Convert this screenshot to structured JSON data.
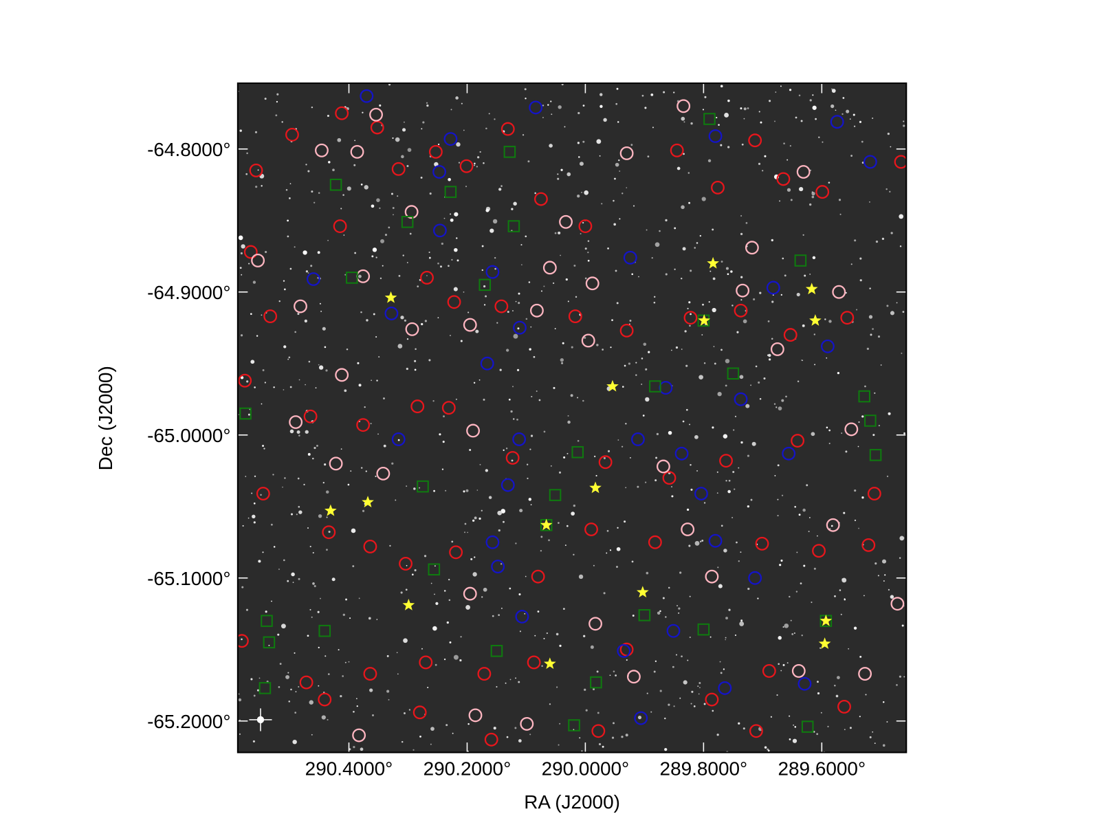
{
  "chart_data": {
    "type": "scatter",
    "xlabel": "RA (J2000)",
    "ylabel": "Dec (J2000)",
    "xlim": [
      290.588,
      289.457
    ],
    "ylim": [
      -65.222,
      -64.754
    ],
    "xticks": [
      {
        "value": 290.4,
        "label": "290.4000°"
      },
      {
        "value": 290.2,
        "label": "290.2000°"
      },
      {
        "value": 290.0,
        "label": "290.0000°"
      },
      {
        "value": 289.8,
        "label": "289.8000°"
      },
      {
        "value": 289.6,
        "label": "289.6000°"
      }
    ],
    "yticks": [
      {
        "value": -64.8,
        "label": "-64.8000°"
      },
      {
        "value": -64.9,
        "label": "-64.9000°"
      },
      {
        "value": -65.0,
        "label": "-65.0000°"
      },
      {
        "value": -65.1,
        "label": "-65.1000°"
      },
      {
        "value": -65.2,
        "label": "-65.2000°"
      }
    ],
    "series": [
      {
        "color": "#e8161c",
        "marker": "circle",
        "x": [
          290.557,
          290.496,
          290.412,
          290.352,
          290.316,
          290.253,
          290.201,
          290.131,
          290.075,
          290.0,
          289.845,
          289.776,
          289.713,
          289.665,
          289.599,
          289.466,
          290.566,
          290.533,
          290.415,
          290.268,
          290.222,
          290.142,
          290.017,
          289.93,
          289.822,
          289.737,
          289.653,
          289.557,
          290.576,
          290.465,
          290.376,
          290.284,
          290.231,
          290.123,
          289.966,
          289.858,
          289.762,
          289.641,
          289.511,
          290.545,
          290.434,
          290.364,
          290.304,
          290.219,
          290.08,
          289.99,
          289.882,
          289.701,
          289.605,
          289.521,
          290.581,
          290.472,
          290.364,
          290.27,
          290.171,
          290.087,
          289.93,
          289.786,
          289.689,
          289.562,
          290.441,
          290.28,
          290.159,
          289.978,
          289.711
        ],
        "y": [
          -64.815,
          -64.79,
          -64.775,
          -64.785,
          -64.814,
          -64.802,
          -64.812,
          -64.786,
          -64.835,
          -64.854,
          -64.801,
          -64.827,
          -64.794,
          -64.821,
          -64.83,
          -64.809,
          -64.872,
          -64.917,
          -64.854,
          -64.89,
          -64.907,
          -64.91,
          -64.917,
          -64.927,
          -64.918,
          -64.913,
          -64.93,
          -64.918,
          -64.962,
          -64.987,
          -64.993,
          -64.98,
          -64.981,
          -65.016,
          -65.019,
          -65.03,
          -65.018,
          -65.004,
          -65.041,
          -65.041,
          -65.068,
          -65.078,
          -65.09,
          -65.082,
          -65.099,
          -65.066,
          -65.075,
          -65.076,
          -65.081,
          -65.077,
          -65.144,
          -65.173,
          -65.167,
          -65.159,
          -65.167,
          -65.159,
          -65.15,
          -65.185,
          -65.165,
          -65.19,
          -65.185,
          -65.194,
          -65.213,
          -65.207,
          -65.207
        ]
      },
      {
        "color": "#ffb6c1",
        "marker": "circle",
        "x": [
          290.446,
          290.386,
          290.354,
          290.294,
          290.554,
          290.482,
          290.376,
          290.412,
          290.293,
          290.195,
          290.082,
          290.06,
          290.033,
          289.988,
          289.995,
          289.93,
          289.834,
          289.718,
          289.734,
          289.675,
          289.631,
          289.571,
          289.55,
          289.581,
          289.472,
          289.527,
          290.49,
          290.422,
          290.342,
          290.19,
          289.868,
          289.827,
          289.786,
          290.195,
          289.983,
          289.918,
          290.186,
          290.099,
          290.383,
          289.639
        ],
        "y": [
          -64.801,
          -64.802,
          -64.776,
          -64.844,
          -64.878,
          -64.91,
          -64.889,
          -64.958,
          -64.926,
          -64.923,
          -64.913,
          -64.883,
          -64.851,
          -64.894,
          -64.934,
          -64.803,
          -64.77,
          -64.869,
          -64.899,
          -64.94,
          -64.816,
          -64.9,
          -64.996,
          -65.063,
          -65.118,
          -65.167,
          -64.991,
          -65.02,
          -65.027,
          -64.997,
          -65.022,
          -65.066,
          -65.099,
          -65.111,
          -65.132,
          -65.169,
          -65.196,
          -65.202,
          -65.21,
          -65.165
        ]
      },
      {
        "color": "#1414c8",
        "marker": "circle",
        "x": [
          290.37,
          290.228,
          290.084,
          289.78,
          289.574,
          289.518,
          290.247,
          290.246,
          289.924,
          290.46,
          290.157,
          289.682,
          290.328,
          290.111,
          290.166,
          289.59,
          289.864,
          289.737,
          290.316,
          290.112,
          289.911,
          289.837,
          289.656,
          290.131,
          289.804,
          290.157,
          289.78,
          290.148,
          289.713,
          290.107,
          289.851,
          289.935,
          289.764,
          289.629,
          289.906
        ],
        "y": [
          -64.763,
          -64.793,
          -64.771,
          -64.791,
          -64.781,
          -64.809,
          -64.816,
          -64.857,
          -64.876,
          -64.891,
          -64.886,
          -64.897,
          -64.915,
          -64.925,
          -64.95,
          -64.938,
          -64.967,
          -64.975,
          -65.003,
          -65.003,
          -65.003,
          -65.013,
          -65.013,
          -65.035,
          -65.041,
          -65.075,
          -65.074,
          -65.092,
          -65.1,
          -65.127,
          -65.137,
          -65.151,
          -65.177,
          -65.174,
          -65.198
        ]
      },
      {
        "color": "#0f7a0f",
        "marker": "square",
        "x": [
          290.422,
          290.395,
          290.301,
          290.228,
          290.128,
          290.121,
          290.17,
          289.79,
          289.636,
          289.882,
          289.75,
          289.528,
          289.518,
          289.509,
          290.575,
          290.275,
          290.051,
          290.013,
          290.256,
          289.9,
          289.8,
          290.539,
          290.535,
          290.441,
          290.15,
          289.982,
          290.019,
          289.624,
          290.542,
          289.8,
          290.066,
          289.593
        ],
        "y": [
          -64.825,
          -64.89,
          -64.851,
          -64.83,
          -64.802,
          -64.854,
          -64.895,
          -64.779,
          -64.878,
          -64.966,
          -64.957,
          -64.973,
          -64.99,
          -65.014,
          -64.985,
          -65.036,
          -65.042,
          -65.012,
          -65.094,
          -65.126,
          -65.136,
          -65.13,
          -65.145,
          -65.137,
          -65.151,
          -65.173,
          -65.203,
          -65.204,
          -65.177,
          -64.92,
          -65.063,
          -65.13
        ]
      },
      {
        "color": "#ffff33",
        "marker": "star",
        "x": [
          290.329,
          289.784,
          289.617,
          289.611,
          289.799,
          289.954,
          289.983,
          290.368,
          290.431,
          290.066,
          289.903,
          290.299,
          289.593,
          289.595,
          290.06
        ],
        "y": [
          -64.904,
          -64.88,
          -64.898,
          -64.92,
          -64.92,
          -64.966,
          -65.037,
          -65.047,
          -65.053,
          -65.063,
          -65.11,
          -65.119,
          -65.13,
          -65.146,
          -65.16
        ]
      }
    ]
  }
}
